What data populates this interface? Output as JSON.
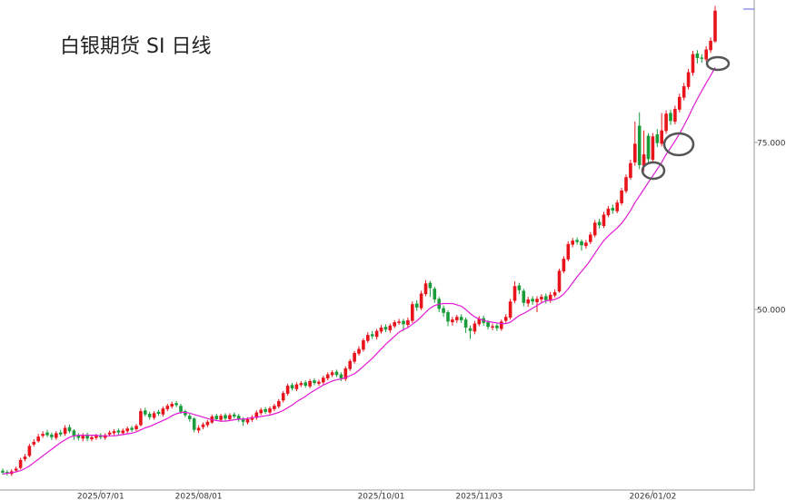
{
  "chart_data": {
    "type": "candlestick",
    "title": "白银期货  SI  日线",
    "up_color": "#e8141c",
    "down_color": "#1a9c3a",
    "ylim": [
      23.0,
      96.3
    ],
    "yticks": [
      {
        "value": 50,
        "label": "50.000"
      },
      {
        "value": 75,
        "label": "75.000"
      }
    ],
    "categories": [
      null,
      null,
      null,
      null,
      null,
      null,
      null,
      null,
      null,
      null,
      null,
      null,
      null,
      null,
      null,
      null,
      null,
      null,
      null,
      null,
      null,
      null,
      "2025/07/01",
      null,
      null,
      null,
      null,
      null,
      null,
      null,
      null,
      null,
      null,
      null,
      null,
      null,
      null,
      null,
      null,
      null,
      null,
      null,
      null,
      null,
      "2025/08/01",
      null,
      null,
      null,
      null,
      null,
      null,
      null,
      null,
      null,
      null,
      null,
      null,
      null,
      null,
      null,
      null,
      null,
      null,
      null,
      null,
      null,
      null,
      null,
      null,
      null,
      null,
      null,
      null,
      null,
      null,
      null,
      null,
      null,
      null,
      null,
      null,
      null,
      null,
      null,
      null,
      "2025/10/01",
      null,
      null,
      null,
      null,
      null,
      null,
      null,
      null,
      null,
      null,
      null,
      null,
      null,
      null,
      null,
      null,
      null,
      null,
      null,
      null,
      null,
      "2025/11/03",
      null,
      null,
      null,
      null,
      null,
      null,
      null,
      null,
      null,
      null,
      null,
      null,
      null,
      null,
      null,
      null,
      null,
      null,
      null,
      null,
      null,
      null,
      null,
      null,
      null,
      null,
      null,
      null,
      null,
      null,
      null,
      null,
      null,
      null,
      null,
      null,
      null,
      null,
      "2026/01/02",
      null,
      null,
      null,
      null,
      null,
      null,
      null,
      null,
      null,
      null,
      null,
      null,
      null,
      null
    ],
    "open": [
      25.9,
      25.7,
      25.4,
      25.9,
      26.3,
      27.6,
      28.1,
      29.8,
      30.3,
      31.1,
      31.6,
      31.3,
      30.8,
      31.6,
      31.4,
      32.4,
      31.9,
      31.2,
      30.7,
      31.3,
      30.6,
      30.8,
      31.2,
      30.8,
      31.3,
      31.5,
      31.9,
      31.5,
      31.8,
      32.3,
      32.1,
      32.7,
      34.9,
      34.4,
      33.8,
      34.7,
      34.3,
      35.1,
      35.5,
      36.0,
      35.6,
      34.8,
      34.1,
      33.7,
      31.9,
      32.4,
      32.7,
      33.1,
      34.1,
      33.5,
      34.2,
      33.6,
      34.3,
      34.1,
      33.6,
      33.1,
      33.5,
      33.8,
      34.5,
      35.1,
      34.6,
      35.1,
      35.5,
      36.4,
      37.4,
      38.7,
      38.1,
      38.7,
      39.1,
      38.5,
      39.4,
      38.9,
      39.1,
      39.7,
      40.2,
      40.7,
      40.3,
      39.6,
      41.1,
      42.2,
      43.4,
      44.0,
      45.3,
      46.3,
      45.9,
      46.7,
      47.4,
      46.9,
      47.5,
      48.0,
      48.3,
      47.7,
      48.3,
      50.9,
      50.2,
      52.3,
      54.0,
      53.1,
      51.6,
      50.2,
      49.6,
      48.1,
      48.4,
      48.9,
      48.5,
      47.2,
      46.7,
      47.8,
      48.7,
      48.1,
      47.3,
      47.6,
      47.1,
      48.3,
      48.8,
      51.3,
      53.6,
      52.8,
      50.9,
      51.6,
      51.1,
      51.5,
      52.0,
      51.3,
      52.1,
      52.7,
      55.7,
      57.5,
      59.7,
      60.4,
      60.2,
      59.5,
      60.1,
      61.1,
      63.1,
      62.5,
      64.1,
      65.2,
      64.7,
      65.9,
      67.7,
      69.7,
      72.0,
      77.5,
      71.5,
      76.0,
      72.4,
      76.2,
      74.8,
      76.7,
      79.4,
      78.1,
      79.9,
      81.7,
      83.3,
      85.4,
      88.3,
      87.7,
      87.4,
      88.8,
      90.1
    ],
    "high": [
      26.2,
      26.0,
      26.1,
      26.5,
      27.8,
      28.4,
      29.9,
      30.6,
      31.4,
      31.8,
      32.0,
      31.6,
      31.8,
      32.0,
      32.7,
      32.8,
      32.1,
      31.5,
      31.5,
      31.6,
      31.2,
      31.4,
      31.5,
      31.5,
      31.9,
      32.1,
      32.2,
      32.2,
      32.5,
      32.6,
      32.9,
      35.2,
      35.3,
      34.7,
      34.8,
      35.0,
      35.5,
      35.9,
      36.2,
      36.3,
      35.9,
      35.0,
      34.4,
      33.9,
      32.7,
      33.1,
      33.5,
      34.3,
      34.4,
      34.4,
      34.5,
      34.5,
      34.6,
      34.4,
      33.9,
      33.9,
      34.2,
      34.9,
      35.3,
      35.4,
      35.5,
      35.9,
      36.6,
      37.8,
      38.9,
      39.0,
      39.1,
      39.3,
      39.4,
      39.6,
      39.7,
      39.5,
      40.1,
      40.6,
      40.9,
      41.0,
      40.6,
      41.5,
      42.6,
      43.8,
      44.5,
      45.7,
      46.6,
      46.8,
      47.1,
      47.7,
      47.8,
      47.9,
      48.4,
      48.6,
      48.6,
      48.8,
      51.2,
      51.4,
      52.8,
      54.4,
      54.3,
      53.4,
      51.9,
      50.6,
      49.9,
      48.9,
      49.2,
      49.3,
      48.8,
      47.6,
      48.3,
      49.0,
      49.1,
      48.4,
      47.9,
      47.9,
      48.5,
      49.3,
      51.6,
      54.2,
      54.0,
      53.1,
      51.9,
      52.0,
      52.0,
      52.3,
      52.4,
      52.6,
      53.0,
      56.1,
      58.0,
      60.2,
      60.7,
      60.8,
      60.5,
      60.4,
      61.6,
      63.4,
      63.6,
      64.6,
      65.5,
      65.7,
      66.4,
      68.2,
      70.2,
      72.4,
      78.1,
      79.5,
      76.8,
      76.4,
      76.4,
      77.0,
      79.4,
      79.8,
      79.9,
      80.5,
      82.3,
      83.9,
      86.0,
      88.7,
      88.8,
      88.2,
      89.4,
      90.7,
      95.4
    ],
    "low": [
      25.3,
      25.2,
      25.1,
      25.7,
      26.1,
      27.3,
      27.9,
      29.5,
      30.1,
      30.8,
      30.9,
      30.5,
      30.5,
      31.0,
      31.1,
      31.5,
      30.5,
      30.4,
      30.3,
      30.3,
      30.3,
      30.5,
      30.6,
      30.5,
      31.0,
      31.2,
      31.3,
      31.2,
      31.5,
      31.7,
      31.8,
      32.5,
      34.0,
      33.5,
      33.5,
      34.1,
      34.0,
      34.8,
      35.2,
      35.4,
      34.4,
      33.9,
      33.2,
      31.6,
      31.5,
      32.1,
      32.4,
      32.9,
      33.3,
      33.2,
      33.4,
      33.3,
      33.7,
      33.2,
      32.6,
      32.8,
      33.2,
      33.5,
      34.2,
      34.4,
      34.3,
      34.8,
      35.2,
      36.1,
      37.1,
      37.9,
      37.8,
      38.4,
      38.3,
      38.2,
      38.7,
      38.6,
      38.8,
      39.4,
      39.9,
      39.9,
      39.3,
      39.3,
      40.8,
      41.9,
      43.1,
      43.7,
      45.0,
      45.6,
      45.5,
      46.4,
      46.6,
      46.5,
      47.2,
      47.7,
      46.8,
      47.3,
      48.0,
      49.8,
      49.9,
      52.0,
      51.9,
      51.0,
      49.6,
      48.9,
      47.5,
      47.6,
      48.0,
      48.0,
      46.5,
      45.6,
      46.3,
      47.5,
      47.6,
      47.0,
      46.9,
      46.8,
      46.8,
      48.0,
      48.5,
      51.0,
      52.3,
      50.5,
      50.4,
      50.7,
      49.6,
      51.1,
      50.9,
      51.0,
      51.8,
      52.5,
      55.4,
      57.2,
      59.3,
      59.7,
      58.8,
      59.1,
      59.8,
      60.8,
      62.1,
      62.2,
      63.8,
      64.3,
      64.4,
      65.6,
      67.4,
      69.4,
      71.5,
      71.0,
      70.7,
      71.8,
      72.0,
      74.3,
      74.4,
      76.3,
      77.6,
      77.7,
      79.5,
      81.3,
      82.9,
      85.0,
      86.8,
      86.9,
      87.1,
      88.4,
      89.9
    ],
    "close": [
      25.6,
      25.5,
      25.8,
      26.2,
      27.5,
      28.0,
      29.6,
      30.2,
      31.0,
      31.4,
      31.2,
      30.9,
      31.5,
      31.3,
      32.3,
      31.8,
      31.0,
      30.8,
      31.1,
      30.7,
      30.9,
      31.1,
      30.9,
      31.2,
      31.6,
      31.8,
      31.6,
      31.9,
      32.2,
      32.0,
      32.6,
      34.8,
      34.3,
      33.9,
      34.5,
      34.4,
      35.2,
      35.6,
      35.9,
      35.7,
      34.7,
      34.2,
      33.6,
      32.0,
      32.3,
      32.8,
      33.2,
      34.0,
      33.6,
      34.1,
      33.7,
      34.2,
      34.0,
      33.5,
      33.2,
      33.6,
      33.9,
      34.6,
      35.0,
      34.7,
      35.2,
      35.6,
      36.3,
      37.5,
      38.6,
      38.2,
      38.8,
      39.0,
      38.6,
      39.3,
      39.0,
      39.2,
      39.8,
      40.3,
      40.6,
      40.2,
      39.7,
      41.2,
      42.3,
      43.5,
      44.1,
      45.4,
      46.2,
      46.0,
      46.8,
      47.3,
      47.0,
      47.6,
      48.1,
      48.2,
      47.8,
      48.4,
      50.8,
      50.3,
      52.4,
      53.9,
      53.2,
      51.5,
      50.1,
      49.5,
      48.2,
      48.5,
      48.9,
      48.4,
      47.3,
      46.8,
      47.9,
      48.6,
      48.0,
      47.4,
      47.5,
      47.2,
      48.2,
      48.9,
      51.2,
      53.5,
      52.9,
      51.0,
      51.5,
      51.2,
      51.6,
      51.9,
      51.4,
      52.2,
      52.6,
      55.8,
      57.6,
      59.8,
      60.3,
      60.1,
      59.6,
      60.0,
      61.2,
      63.0,
      62.6,
      64.2,
      65.1,
      64.8,
      66.0,
      67.8,
      69.8,
      71.9,
      74.8,
      71.6,
      73.2,
      72.5,
      75.9,
      74.9,
      76.8,
      79.3,
      78.2,
      80.0,
      81.8,
      83.4,
      85.5,
      88.2,
      87.6,
      87.5,
      88.9,
      90.2,
      94.7
    ],
    "line": {
      "color": "#e21ad6",
      "values": [
        25.4,
        25.5,
        25.6,
        25.7,
        25.9,
        26.2,
        26.6,
        27.1,
        27.6,
        28.1,
        28.6,
        29.1,
        29.6,
        30.1,
        30.5,
        30.9,
        31.1,
        31.2,
        31.2,
        31.2,
        31.2,
        31.2,
        31.1,
        31.1,
        31.1,
        31.1,
        31.2,
        31.3,
        31.4,
        31.5,
        31.7,
        32.0,
        32.3,
        32.5,
        32.8,
        33.1,
        33.4,
        33.7,
        34.1,
        34.4,
        34.6,
        34.6,
        34.5,
        34.3,
        34.1,
        33.9,
        33.7,
        33.5,
        33.4,
        33.3,
        33.3,
        33.4,
        33.5,
        33.6,
        33.6,
        33.7,
        33.8,
        33.9,
        34.0,
        34.1,
        34.2,
        34.4,
        34.6,
        34.9,
        35.3,
        35.7,
        36.2,
        36.6,
        37.0,
        37.5,
        37.9,
        38.3,
        38.7,
        39.0,
        39.3,
        39.5,
        39.6,
        39.8,
        40.1,
        40.4,
        40.9,
        41.5,
        42.1,
        42.7,
        43.4,
        44.1,
        44.8,
        45.4,
        46.0,
        46.6,
        47.0,
        47.3,
        47.8,
        48.3,
        48.9,
        49.6,
        50.2,
        50.6,
        50.8,
        50.9,
        50.9,
        50.9,
        50.7,
        50.5,
        50.0,
        49.4,
        48.9,
        48.6,
        48.4,
        48.2,
        48.1,
        48.0,
        47.9,
        47.9,
        48.1,
        48.6,
        49.1,
        49.4,
        49.8,
        50.2,
        50.6,
        51.0,
        51.3,
        51.4,
        51.5,
        51.8,
        52.3,
        53.1,
        54.0,
        54.9,
        55.7,
        56.5,
        57.4,
        58.4,
        59.4,
        60.3,
        61.0,
        61.6,
        62.2,
        62.9,
        63.8,
        64.8,
        66.0,
        67.0,
        68.0,
        69.0,
        70.0,
        71.0,
        72.0,
        73.2,
        74.2,
        75.2,
        76.3,
        77.5,
        78.8,
        80.2,
        81.5,
        82.7,
        83.9,
        85.0,
        86.2
      ]
    }
  }
}
